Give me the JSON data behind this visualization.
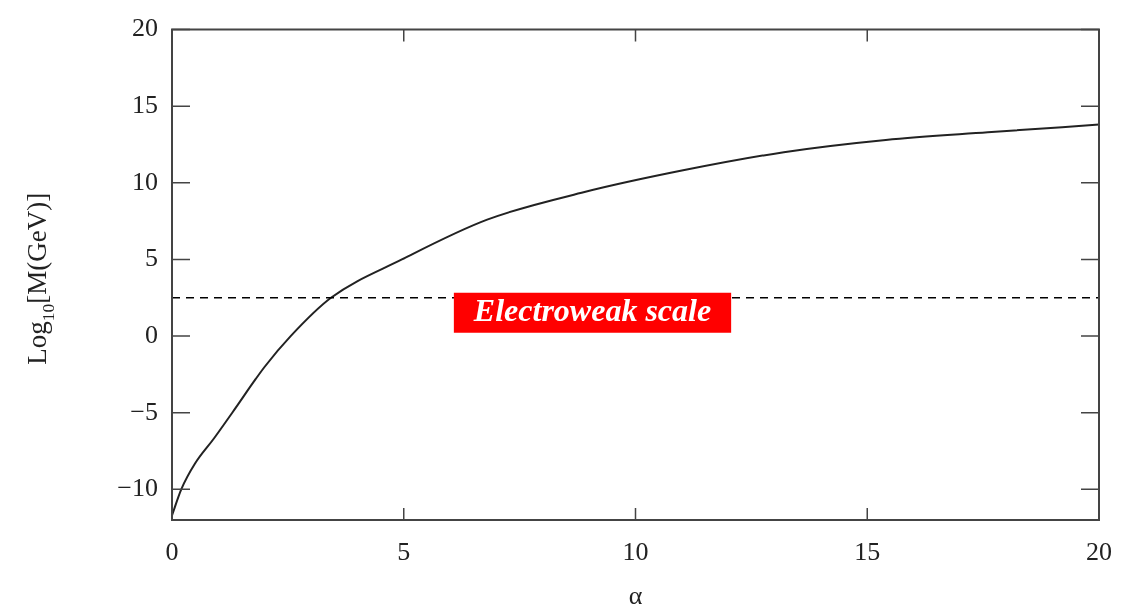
{
  "chart_data": {
    "type": "line",
    "xlabel": "α",
    "ylabel": "Log$_{10}$[M(GeV)]",
    "x": [
      0,
      0.2,
      0.5,
      0.9,
      1.3,
      2,
      2.56,
      3.43,
      4.96,
      6.8,
      8.9,
      11,
      13.2,
      15.4,
      17.6,
      20
    ],
    "series": [
      {
        "color": "#222222",
        "values": [
          -11.7,
          -10,
          -8.3,
          -6.7,
          -5,
          -2,
          0,
          2.5,
          5,
          7.6,
          9.4,
          10.8,
          12,
          12.8,
          13.3,
          13.8
        ]
      }
    ],
    "xlim": [
      0,
      20
    ],
    "xticks": [
      0,
      5,
      10,
      15,
      20
    ],
    "ylim": [
      -12,
      20
    ],
    "yticks": [
      -10,
      -5,
      0,
      5,
      10,
      15,
      20
    ],
    "ref_lines": [
      {
        "axis": "y",
        "value": 2.5,
        "label": "Electroweak scale",
        "color": "#000000",
        "line_style": "dashed"
      }
    ],
    "grid": false,
    "legend": false,
    "marker": "none",
    "line_style": "solid"
  }
}
